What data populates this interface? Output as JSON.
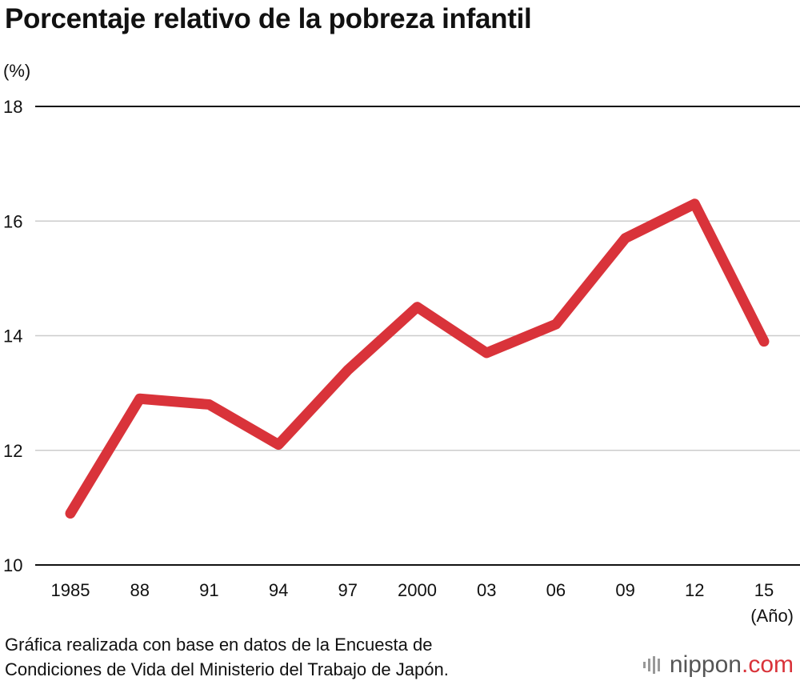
{
  "chart_data": {
    "type": "line",
    "title": "Porcentaje relativo de la pobreza infantil",
    "ylabel": "(%)",
    "xlabel": "(Año)",
    "categories": [
      "1985",
      "88",
      "91",
      "94",
      "97",
      "2000",
      "03",
      "06",
      "09",
      "12",
      "15"
    ],
    "series": [
      {
        "name": "Pobreza infantil",
        "values": [
          10.9,
          12.9,
          12.8,
          12.1,
          13.4,
          14.5,
          13.7,
          14.2,
          15.7,
          16.3,
          13.9
        ]
      }
    ],
    "ylim": [
      10,
      18
    ],
    "yticks": [
      "10",
      "12",
      "14",
      "16",
      "18"
    ],
    "line_color": "#d9333a",
    "grid": true
  },
  "source": {
    "line1": "Gráfica realizada con base en datos de la Encuesta de",
    "line2": "Condiciones de Vida del Ministerio del Trabajo de Japón."
  },
  "logo": {
    "name": "nippon",
    "suffix": ".com",
    "accent": "#d9333a"
  }
}
